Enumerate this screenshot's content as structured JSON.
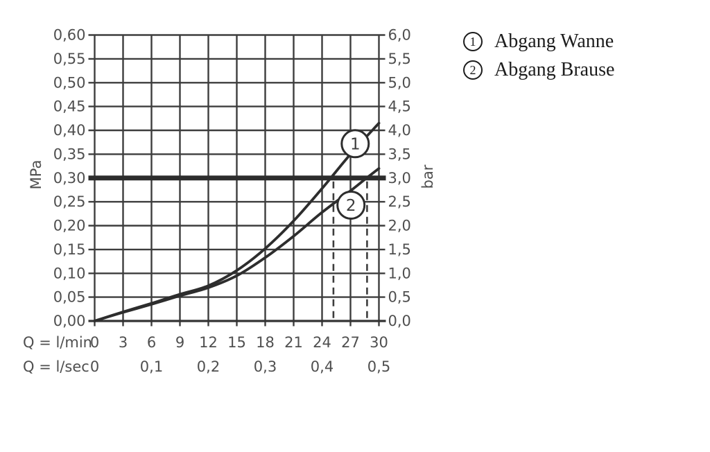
{
  "chart_data": {
    "type": "line",
    "title": "",
    "x_axis_primary": {
      "label": "Q = l/min",
      "ticks": [
        0,
        3,
        6,
        9,
        12,
        15,
        18,
        21,
        24,
        27,
        30
      ],
      "range": [
        0,
        30
      ]
    },
    "x_axis_secondary": {
      "label": "Q = l/sec",
      "ticks": [
        "0",
        "0,1",
        "0,2",
        "0,3",
        "0,4",
        "0,5"
      ],
      "tick_positions_lmin": [
        0,
        6,
        12,
        18,
        24,
        30
      ]
    },
    "y_axis_left": {
      "label": "MPa",
      "ticks": [
        "0,60",
        "0,55",
        "0,50",
        "0,45",
        "0,40",
        "0,35",
        "0,30",
        "0,25",
        "0,20",
        "0,15",
        "0,10",
        "0,05",
        "0,00"
      ],
      "range": [
        0,
        0.6
      ]
    },
    "y_axis_right": {
      "label": "bar",
      "ticks": [
        "6,0",
        "5,5",
        "5,0",
        "4,5",
        "4,0",
        "3,5",
        "3,0",
        "2,5",
        "2,0",
        "1,5",
        "1,0",
        "0,5",
        "0,0"
      ],
      "range": [
        0,
        6
      ]
    },
    "grid": {
      "x_step_lmin": 3,
      "y_step_bar": 0.5,
      "grid_on": true
    },
    "series": [
      {
        "id": "1",
        "name": "Abgang Wanne",
        "points_lmin_bar": [
          [
            0,
            0
          ],
          [
            3,
            0.19
          ],
          [
            6,
            0.37
          ],
          [
            9,
            0.56
          ],
          [
            12,
            0.74
          ],
          [
            15,
            1.06
          ],
          [
            18,
            1.52
          ],
          [
            21,
            2.1
          ],
          [
            24,
            2.78
          ],
          [
            27,
            3.5
          ],
          [
            30,
            4.15
          ]
        ],
        "marker": {
          "label": "1",
          "at_lmin": 27.5,
          "at_bar": 3.72
        }
      },
      {
        "id": "2",
        "name": "Abgang Brause",
        "points_lmin_bar": [
          [
            0,
            0
          ],
          [
            3,
            0.18
          ],
          [
            6,
            0.35
          ],
          [
            9,
            0.53
          ],
          [
            12,
            0.7
          ],
          [
            15,
            0.95
          ],
          [
            18,
            1.33
          ],
          [
            21,
            1.78
          ],
          [
            24,
            2.28
          ],
          [
            27,
            2.73
          ],
          [
            28.7,
            3.0
          ],
          [
            30,
            3.2
          ]
        ],
        "marker": {
          "label": "2",
          "at_lmin": 27.05,
          "at_bar": 2.43
        }
      }
    ],
    "reference_line": {
      "bar": 3.0,
      "mpa": 0.3
    },
    "dashed_guides_lmin": [
      25.2,
      28.75
    ],
    "legend_position": "right"
  },
  "legend": {
    "items": [
      {
        "symbol": "1",
        "label": "Abgang Wanne"
      },
      {
        "symbol": "2",
        "label": "Abgang Brause"
      }
    ]
  },
  "colors": {
    "background": "#ffffff",
    "grid": "#3d3d3d",
    "axis": "#333333",
    "curve": "#2d2d2d",
    "reference_line": "#2d2d2d",
    "dashed_guide": "#3d3d3d",
    "tick_text": "#4f4f4f",
    "legend_text": "#1c1c1c"
  }
}
